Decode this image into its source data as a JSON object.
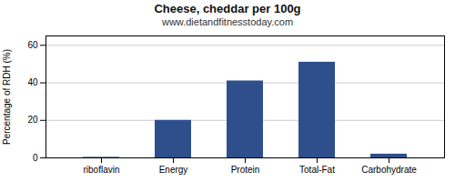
{
  "chart_data": {
    "type": "bar",
    "title": "Cheese, cheddar per 100g",
    "subtitle": "www.dietandfitnesstoday.com",
    "ylabel": "Percentage of RDH (%)",
    "categories": [
      "riboflavin",
      "Energy",
      "Protein",
      "Total-Fat",
      "Carbohydrate"
    ],
    "values": [
      0.3,
      20,
      41,
      51,
      2
    ],
    "color": "#2e4f8c",
    "ylim": [
      0,
      65
    ],
    "yticks": [
      0,
      20,
      40,
      60
    ],
    "grid": true
  }
}
